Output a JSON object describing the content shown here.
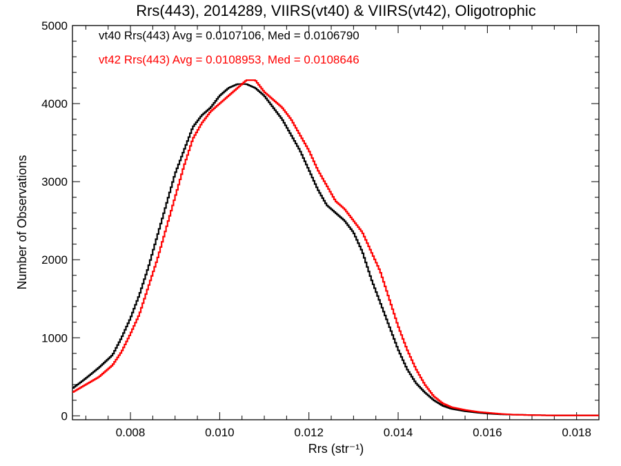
{
  "chart_data": {
    "type": "line",
    "title": "Rrs(443), 2014289, VIIRS(vt40) & VIIRS(vt42), Oligotrophic",
    "xlabel": "Rrs (str⁻¹)",
    "ylabel": "Number of Observations",
    "xlim": [
      0.0067,
      0.0185
    ],
    "ylim": [
      -50,
      5000
    ],
    "xticks": [
      0.008,
      0.01,
      0.012,
      0.014,
      0.016,
      0.018
    ],
    "xtick_labels": [
      "0.008",
      "0.010",
      "0.012",
      "0.014",
      "0.016",
      "0.018"
    ],
    "yticks": [
      0,
      1000,
      2000,
      3000,
      4000,
      5000
    ],
    "ytick_labels": [
      "0",
      "1000",
      "2000",
      "3000",
      "4000",
      "5000"
    ],
    "grid": false,
    "legend_placement": "top-left",
    "series": [
      {
        "name": "vt40 Rrs(443) Avg = 0.0107106, Med = 0.0106790",
        "color": "#000000",
        "style": "step",
        "x": [
          0.0067,
          0.007,
          0.0073,
          0.0076,
          0.0078,
          0.008,
          0.0082,
          0.0084,
          0.0086,
          0.0088,
          0.009,
          0.0092,
          0.0094,
          0.0096,
          0.0098,
          0.01,
          0.0102,
          0.0104,
          0.0106,
          0.0108,
          0.011,
          0.0112,
          0.0114,
          0.0116,
          0.0118,
          0.012,
          0.0122,
          0.0124,
          0.0126,
          0.0128,
          0.013,
          0.0132,
          0.0134,
          0.0136,
          0.0138,
          0.014,
          0.0142,
          0.0144,
          0.0146,
          0.0148,
          0.015,
          0.0152,
          0.0155,
          0.0158,
          0.016,
          0.0163,
          0.0166,
          0.017,
          0.0175,
          0.018,
          0.0185
        ],
        "y": [
          350,
          480,
          620,
          780,
          1000,
          1250,
          1550,
          1900,
          2300,
          2700,
          3100,
          3400,
          3700,
          3850,
          3950,
          4100,
          4200,
          4250,
          4250,
          4200,
          4100,
          3950,
          3800,
          3600,
          3400,
          3150,
          2900,
          2700,
          2600,
          2500,
          2350,
          2100,
          1750,
          1450,
          1150,
          850,
          600,
          420,
          300,
          200,
          130,
          90,
          60,
          40,
          30,
          20,
          15,
          10,
          5,
          5,
          5
        ]
      },
      {
        "name": "vt42 Rrs(443) Avg = 0.0108953, Med = 0.0108646",
        "color": "#ff0000",
        "style": "step",
        "x": [
          0.0067,
          0.007,
          0.0073,
          0.0076,
          0.0078,
          0.008,
          0.0082,
          0.0084,
          0.0086,
          0.0088,
          0.009,
          0.0092,
          0.0094,
          0.0096,
          0.0098,
          0.01,
          0.0102,
          0.0104,
          0.0106,
          0.0108,
          0.011,
          0.0112,
          0.0114,
          0.0116,
          0.0118,
          0.012,
          0.0122,
          0.0124,
          0.0126,
          0.0128,
          0.013,
          0.0132,
          0.0134,
          0.0136,
          0.0138,
          0.014,
          0.0142,
          0.0144,
          0.0146,
          0.0148,
          0.015,
          0.0152,
          0.0155,
          0.0158,
          0.016,
          0.0163,
          0.0166,
          0.017,
          0.0175,
          0.018,
          0.0185
        ],
        "y": [
          300,
          400,
          500,
          650,
          820,
          1050,
          1300,
          1650,
          2000,
          2400,
          2800,
          3200,
          3550,
          3750,
          3900,
          4000,
          4100,
          4200,
          4300,
          4300,
          4150,
          4050,
          3950,
          3800,
          3600,
          3400,
          3150,
          2950,
          2750,
          2650,
          2500,
          2350,
          2100,
          1850,
          1500,
          1150,
          850,
          600,
          400,
          250,
          160,
          110,
          75,
          50,
          40,
          25,
          15,
          10,
          5,
          5,
          5
        ]
      }
    ]
  }
}
